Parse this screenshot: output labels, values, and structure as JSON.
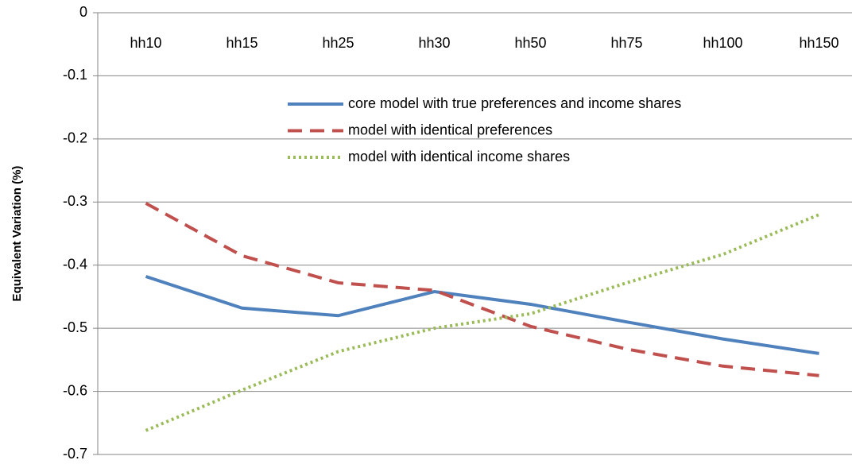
{
  "chart_data": {
    "type": "line",
    "y_label": "Equivalent Variation (%)",
    "categories": [
      "hh10",
      "hh15",
      "hh25",
      "hh30",
      "hh50",
      "hh75",
      "hh100",
      "hh150"
    ],
    "series": [
      {
        "name": "core model with true preferences and income shares",
        "color": "#4f81bd",
        "style": "solid",
        "values": [
          -0.418,
          -0.468,
          -0.48,
          -0.442,
          -0.462,
          -0.49,
          -0.517,
          -0.54
        ]
      },
      {
        "name": "model with identical preferences",
        "color": "#c0504d",
        "style": "dashed",
        "values": [
          -0.302,
          -0.385,
          -0.428,
          -0.44,
          -0.497,
          -0.533,
          -0.56,
          -0.575
        ]
      },
      {
        "name": "model with identical income shares",
        "color": "#9bbb59",
        "style": "dotted",
        "values": [
          -0.662,
          -0.598,
          -0.537,
          -0.5,
          -0.477,
          -0.428,
          -0.383,
          -0.32
        ]
      }
    ],
    "ylim": [
      -0.7,
      0
    ],
    "yticks": [
      0,
      -0.1,
      -0.2,
      -0.3,
      -0.4,
      -0.5,
      -0.6,
      -0.7
    ],
    "grid": true
  }
}
